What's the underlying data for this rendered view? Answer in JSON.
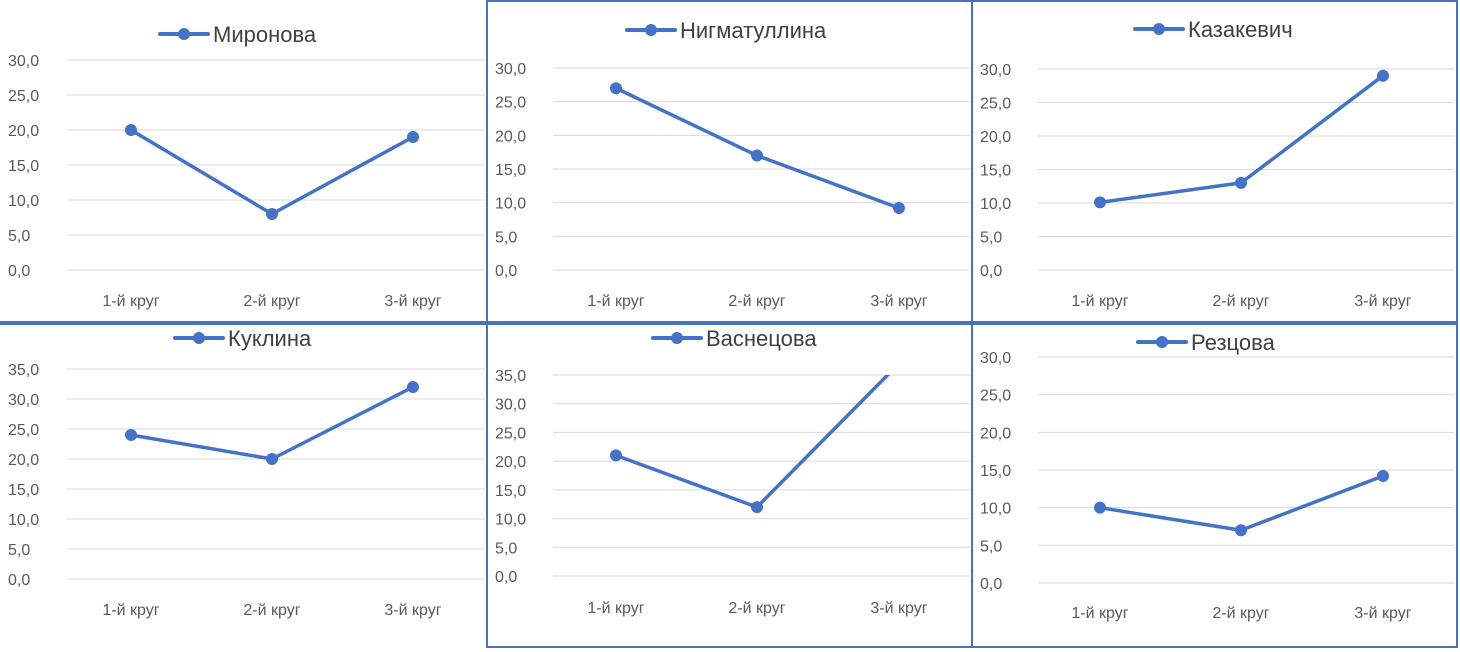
{
  "chart_data": [
    {
      "type": "line",
      "title": "",
      "categories": [
        "1-й круг",
        "2-й круг",
        "3-й круг"
      ],
      "series": [
        {
          "name": "Миронова",
          "values": [
            20.0,
            8.0,
            19.0
          ]
        }
      ],
      "ylim": [
        0,
        30
      ],
      "ystep": 5,
      "ytick_labels": [
        "0,0",
        "5,0",
        "10,0",
        "15,0",
        "20,0",
        "25,0",
        "30,0"
      ],
      "legend": "top",
      "grid": true
    },
    {
      "type": "line",
      "title": "",
      "categories": [
        "1-й круг",
        "2-й круг",
        "3-й круг"
      ],
      "series": [
        {
          "name": "Нигматуллина",
          "values": [
            27.0,
            17.0,
            9.2
          ]
        }
      ],
      "ylim": [
        0,
        30
      ],
      "ystep": 5,
      "ytick_labels": [
        "0,0",
        "5,0",
        "10,0",
        "15,0",
        "20,0",
        "25,0",
        "30,0"
      ],
      "legend": "top",
      "grid": true
    },
    {
      "type": "line",
      "title": "",
      "categories": [
        "1-й круг",
        "2-й круг",
        "3-й круг"
      ],
      "series": [
        {
          "name": "Казакевич",
          "values": [
            10.1,
            13.0,
            29.0
          ]
        }
      ],
      "ylim": [
        0,
        30
      ],
      "ystep": 5,
      "ytick_labels": [
        "0,0",
        "5,0",
        "10,0",
        "15,0",
        "20,0",
        "25,0",
        "30,0"
      ],
      "legend": "top",
      "grid": true
    },
    {
      "type": "line",
      "title": "",
      "categories": [
        "1-й круг",
        "2-й круг",
        "3-й круг"
      ],
      "series": [
        {
          "name": "Куклина",
          "values": [
            24.0,
            20.0,
            32.0
          ]
        }
      ],
      "ylim": [
        0,
        35
      ],
      "ystep": 5,
      "ytick_labels": [
        "0,0",
        "5,0",
        "10,0",
        "15,0",
        "20,0",
        "25,0",
        "30,0",
        "35,0"
      ],
      "legend": "top",
      "grid": true
    },
    {
      "type": "line",
      "title": "",
      "categories": [
        "1-й круг",
        "2-й круг",
        "3-й круг"
      ],
      "series": [
        {
          "name": "Васнецова",
          "values": [
            21.0,
            12.0,
            37.0
          ]
        }
      ],
      "ylim": [
        0,
        35
      ],
      "ystep": 5,
      "ytick_labels": [
        "0,0",
        "5,0",
        "10,0",
        "15,0",
        "20,0",
        "25,0",
        "30,0",
        "35,0"
      ],
      "legend": "top",
      "grid": true
    },
    {
      "type": "line",
      "title": "",
      "categories": [
        "1-й круг",
        "2-й круг",
        "3-й круг"
      ],
      "series": [
        {
          "name": "Резцова",
          "values": [
            10.0,
            7.0,
            14.2
          ]
        }
      ],
      "ylim": [
        0,
        30
      ],
      "ystep": 5,
      "ytick_labels": [
        "0,0",
        "5,0",
        "10,0",
        "15,0",
        "20,0",
        "25,0",
        "30,0"
      ],
      "legend": "top",
      "grid": true
    }
  ],
  "colors": {
    "series": "#4472c4",
    "grid": "#d9d9d9",
    "tick_text": "#595959",
    "frame": "#4a72b8"
  }
}
